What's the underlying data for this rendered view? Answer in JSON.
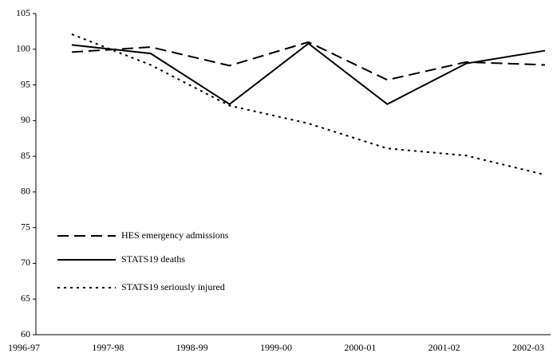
{
  "chart_data": {
    "type": "line",
    "categories": [
      "1996-97",
      "1997-98",
      "1998-99",
      "1999-00",
      "2000-01",
      "2001-02",
      "2002-03"
    ],
    "series": [
      {
        "name": "HES emergency admissions",
        "color": "#000000",
        "dash": "dashed",
        "values": [
          99.6,
          100.3,
          97.7,
          101.0,
          95.7,
          98.2,
          97.8
        ]
      },
      {
        "name": "STATS19 deaths",
        "color": "#000000",
        "dash": "solid",
        "values": [
          100.6,
          99.4,
          92.3,
          100.8,
          92.3,
          98.0,
          99.8
        ]
      },
      {
        "name": "STATS19 seriously injured",
        "color": "#000000",
        "dash": "dotted",
        "values": [
          102.1,
          97.8,
          92.1,
          89.6,
          86.1,
          85.1,
          82.4
        ]
      }
    ],
    "ylim": [
      60,
      105
    ],
    "yticks": [
      60,
      65,
      70,
      75,
      80,
      85,
      90,
      95,
      100,
      105
    ],
    "grid": false,
    "legend": "lower left"
  }
}
